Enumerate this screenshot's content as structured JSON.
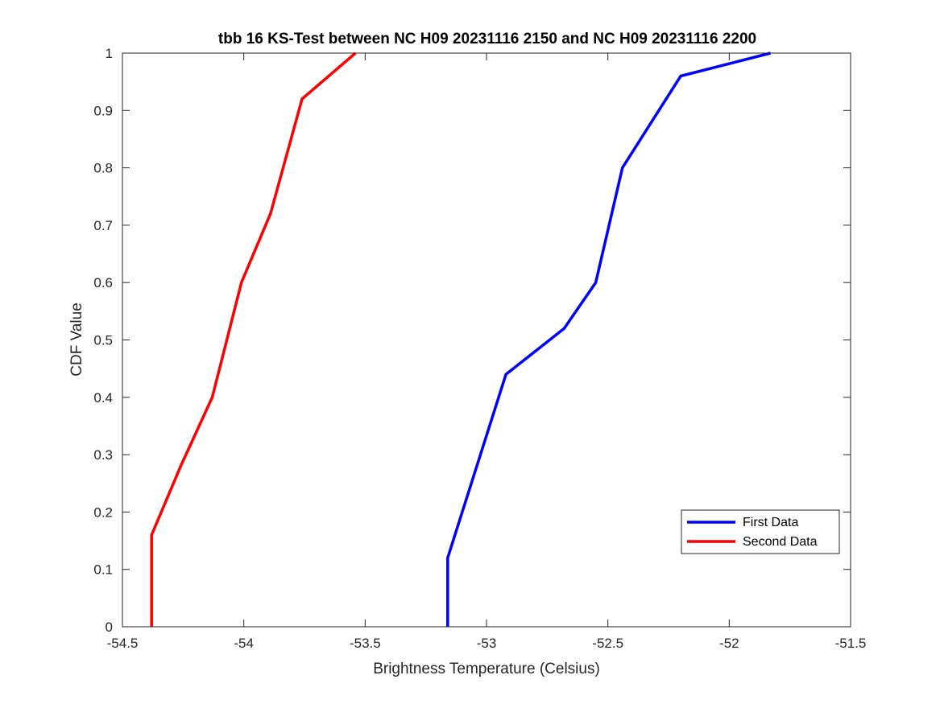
{
  "chart_data": {
    "type": "line",
    "title": "tbb 16 KS-Test between NC H09 20231116 2150 and NC H09 20231116 2200",
    "xlabel": "Brightness Temperature (Celsius)",
    "ylabel": "CDF Value",
    "xlim": [
      -54.5,
      -51.5
    ],
    "ylim": [
      0,
      1
    ],
    "xticks": [
      -54.5,
      -54,
      -53.5,
      -53,
      -52.5,
      -52,
      -51.5
    ],
    "xtick_labels": [
      "-54.5",
      "-54",
      "-53.5",
      "-53",
      "-52.5",
      "-52",
      "-51.5"
    ],
    "yticks": [
      0,
      0.1,
      0.2,
      0.3,
      0.4,
      0.5,
      0.6,
      0.7,
      0.8,
      0.9,
      1
    ],
    "ytick_labels": [
      "0",
      "0.1",
      "0.2",
      "0.3",
      "0.4",
      "0.5",
      "0.6",
      "0.7",
      "0.8",
      "0.9",
      "1"
    ],
    "grid": false,
    "legend_position": "bottom-right",
    "series": [
      {
        "name": "First Data",
        "color": "#0000ff",
        "x": [
          -53.16,
          -53.16,
          -52.92,
          -52.68,
          -52.55,
          -52.44,
          -52.2,
          -51.83
        ],
        "y": [
          0,
          0.12,
          0.44,
          0.52,
          0.6,
          0.8,
          0.96,
          1.0
        ]
      },
      {
        "name": "Second Data",
        "color": "#ff0000",
        "x": [
          -54.38,
          -54.38,
          -54.26,
          -54.13,
          -54.01,
          -53.89,
          -53.76,
          -53.54
        ],
        "y": [
          0,
          0.16,
          0.28,
          0.4,
          0.6,
          0.72,
          0.92,
          1.0
        ]
      }
    ]
  }
}
